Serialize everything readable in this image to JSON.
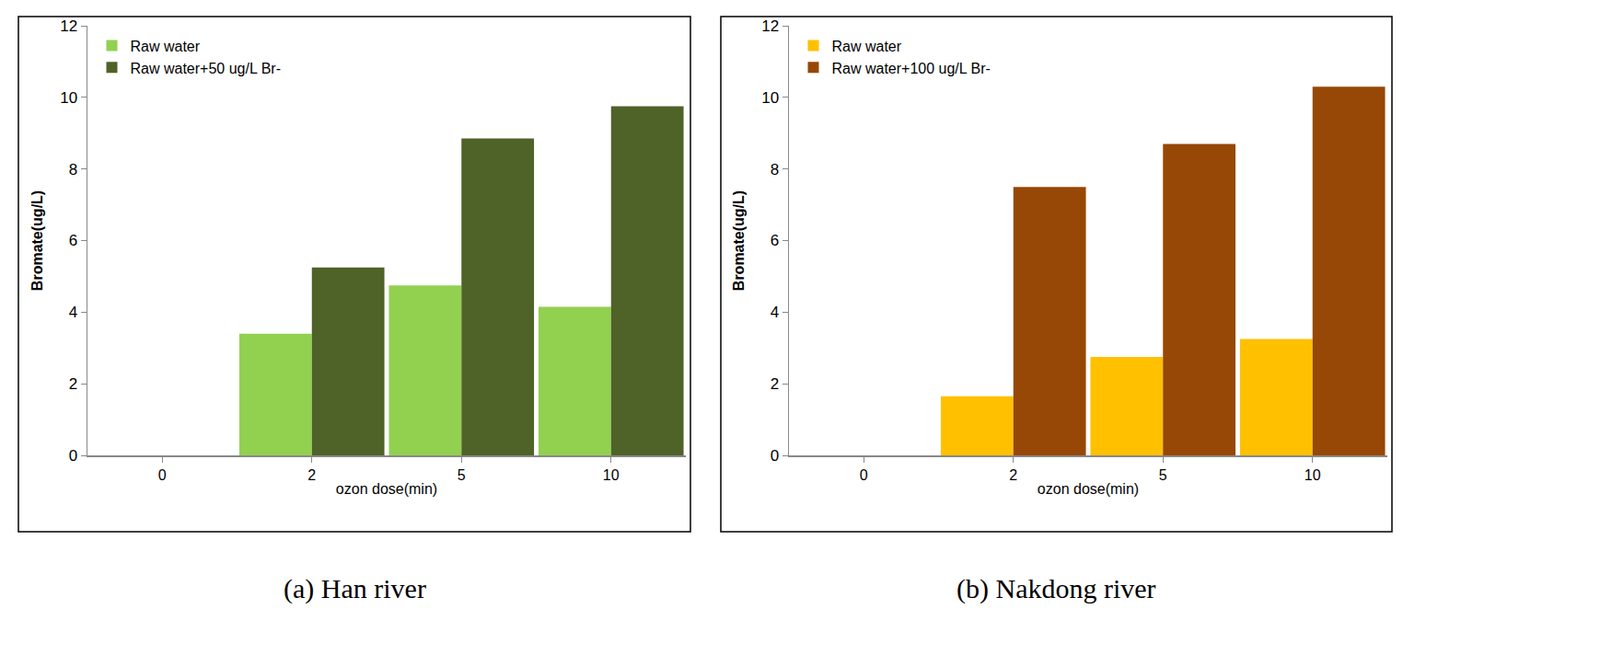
{
  "chart_data": [
    {
      "type": "bar",
      "title": "(a) Han river",
      "x_label": "ozon dose(min)",
      "y_label": "Bromate(ug/L)",
      "categories": [
        "0",
        "2",
        "5",
        "10"
      ],
      "series": [
        {
          "name": "Raw water",
          "color": "#92d050",
          "values": [
            0,
            3.4,
            4.75,
            4.15
          ]
        },
        {
          "name": "Raw water+50 ug/L Br-",
          "color": "#4f6228",
          "values": [
            0,
            5.25,
            8.85,
            9.75
          ]
        }
      ],
      "ylim": [
        0,
        12
      ],
      "yticks": [
        0,
        2,
        4,
        6,
        8,
        10,
        12
      ],
      "grid": false,
      "legend": "upper left"
    },
    {
      "type": "bar",
      "title": "(b) Nakdong river",
      "x_label": "ozon dose(min)",
      "y_label": "Bromate(ug/L)",
      "categories": [
        "0",
        "2",
        "5",
        "10"
      ],
      "series": [
        {
          "name": "Raw water",
          "color": "#ffc000",
          "values": [
            0,
            1.65,
            2.75,
            3.25
          ]
        },
        {
          "name": "Raw water+100 ug/L Br-",
          "color": "#974706",
          "values": [
            0,
            7.5,
            8.7,
            10.3
          ]
        }
      ],
      "ylim": [
        0,
        12
      ],
      "yticks": [
        0,
        2,
        4,
        6,
        8,
        10,
        12
      ],
      "grid": false,
      "legend": "upper left"
    }
  ]
}
